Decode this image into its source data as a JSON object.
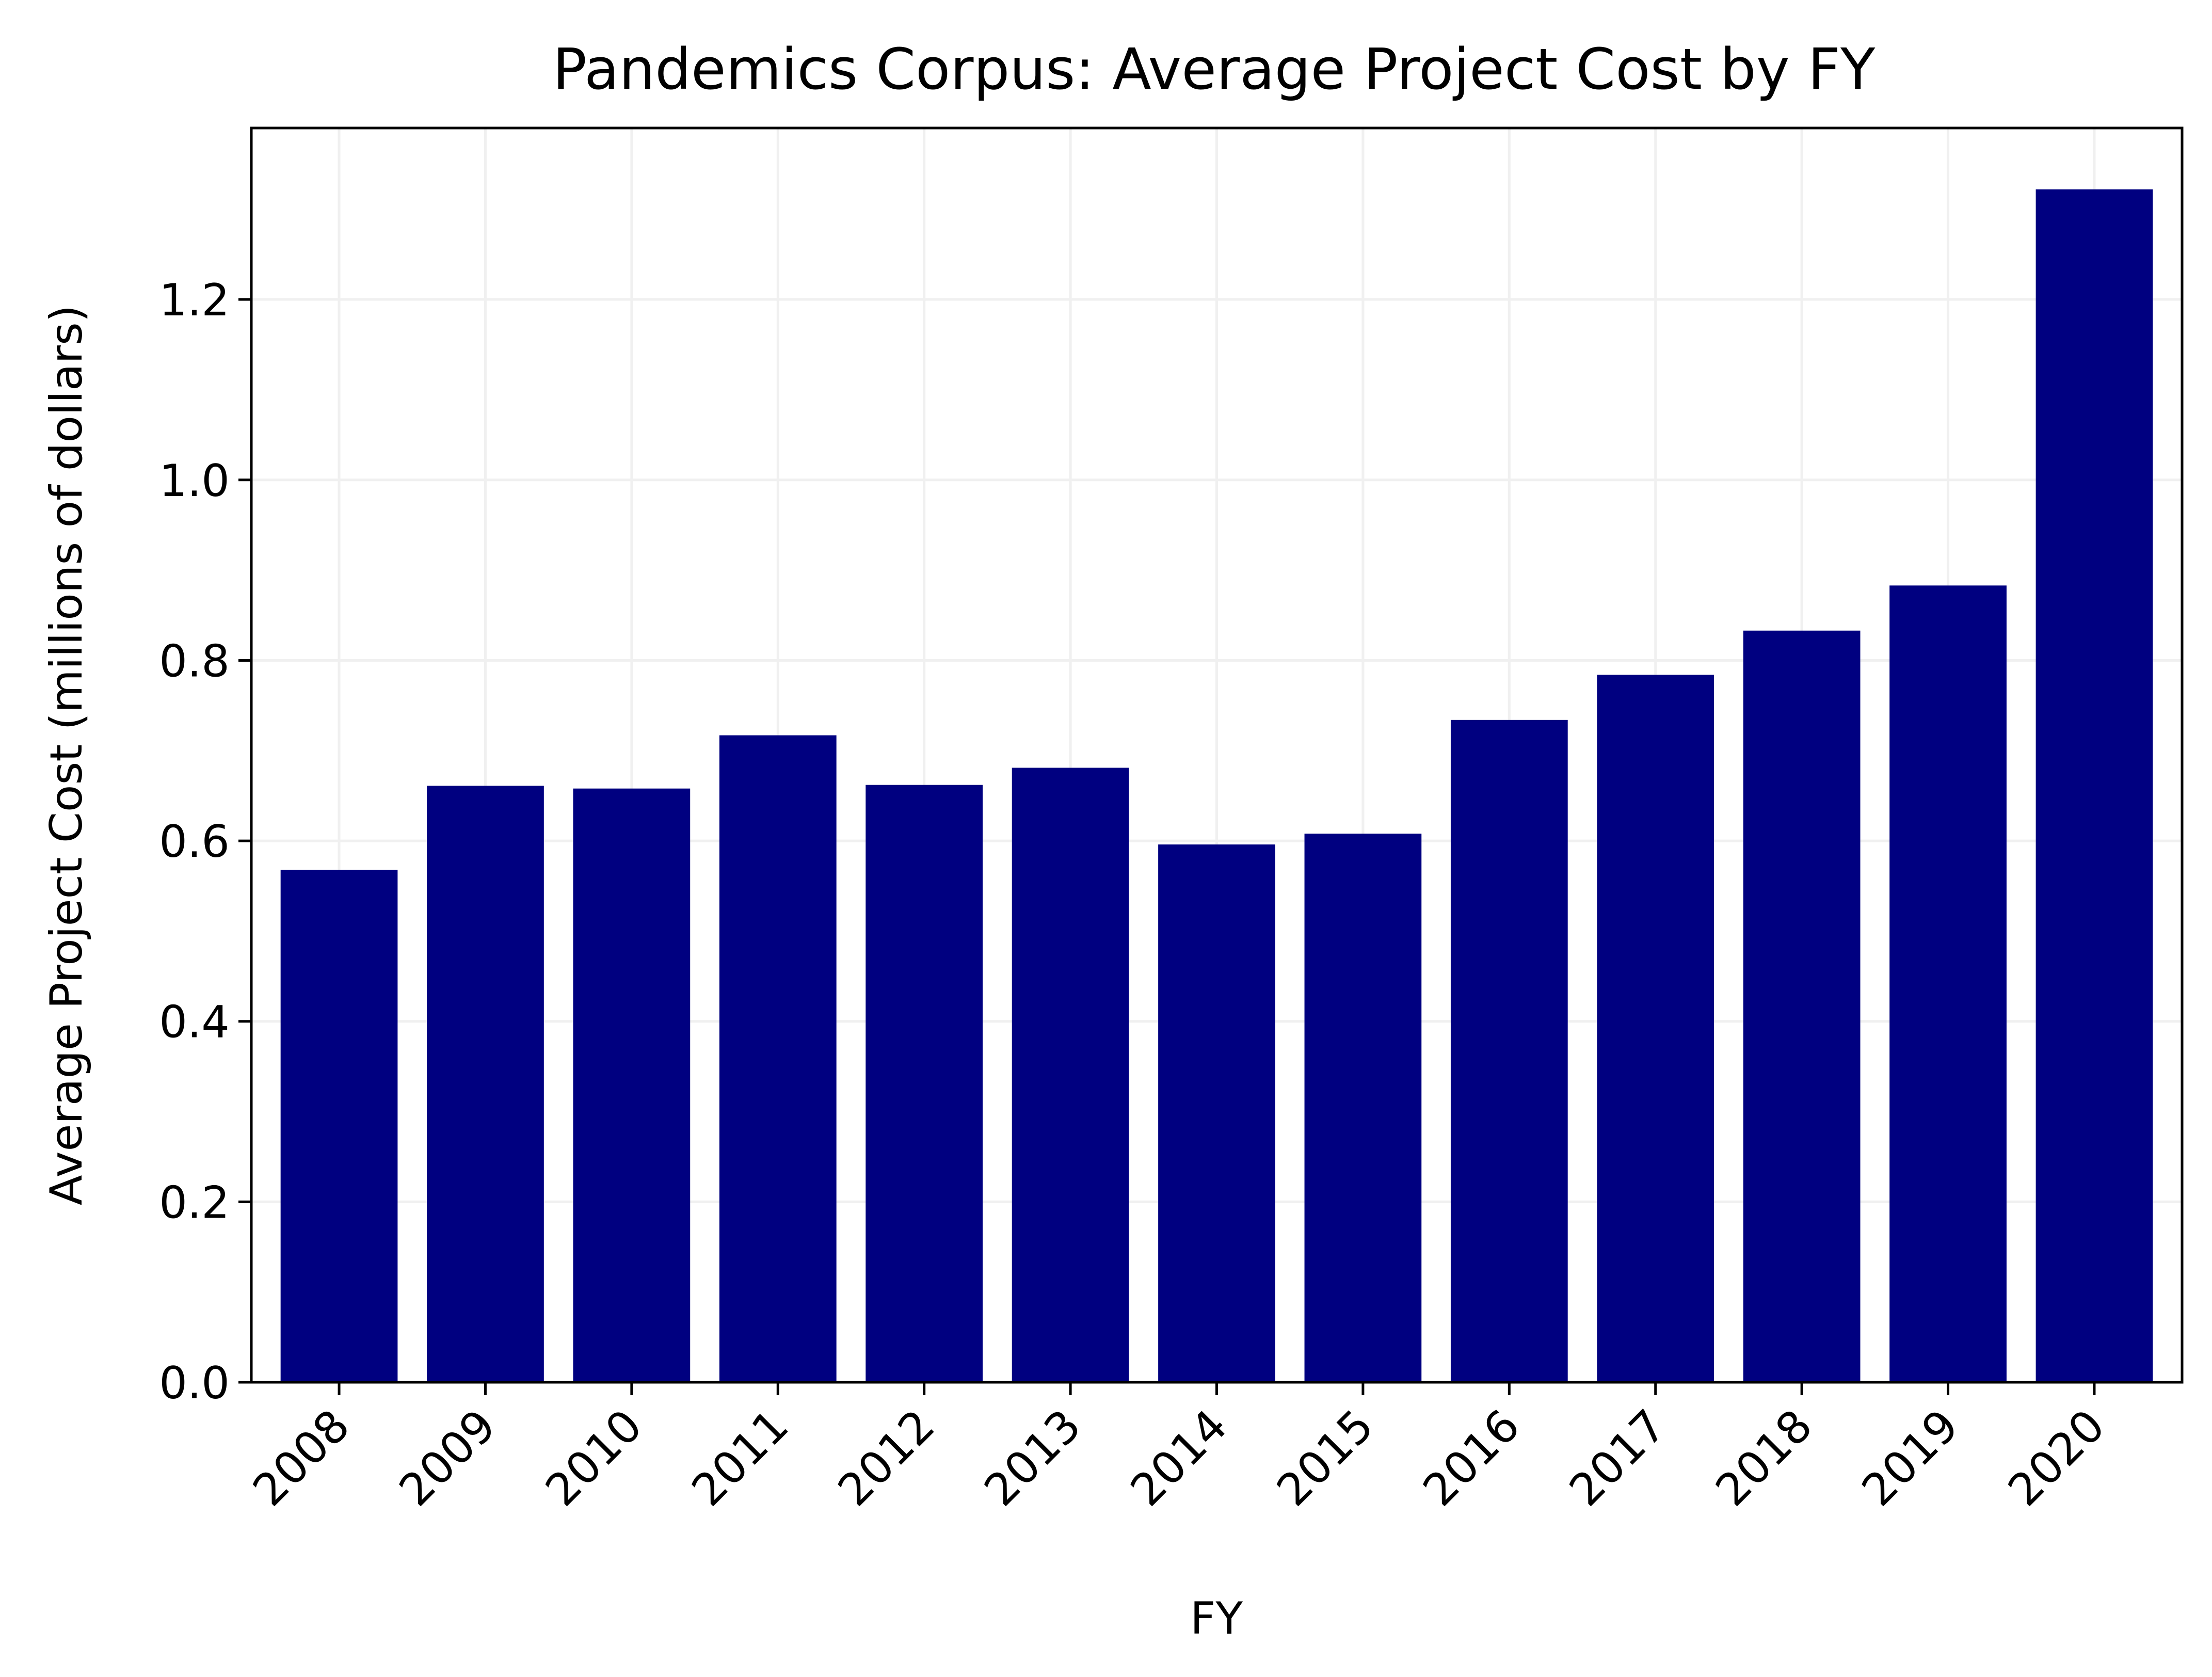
{
  "chart_data": {
    "type": "bar",
    "title": "Pandemics Corpus: Average Project Cost by FY",
    "xlabel": "FY",
    "ylabel": "Average Project Cost (millions of dollars)",
    "categories": [
      "2008",
      "2009",
      "2010",
      "2011",
      "2012",
      "2013",
      "2014",
      "2015",
      "2016",
      "2017",
      "2018",
      "2019",
      "2020"
    ],
    "values": [
      0.568,
      0.661,
      0.658,
      0.717,
      0.662,
      0.681,
      0.596,
      0.608,
      0.734,
      0.784,
      0.833,
      0.883,
      1.322
    ],
    "ylim": [
      0,
      1.39
    ],
    "yticks": [
      "0.0",
      "0.2",
      "0.4",
      "0.6",
      "0.8",
      "1.0",
      "1.2"
    ],
    "grid": true,
    "colors": {
      "bar": "#000080",
      "grid": "#f0f0f0",
      "axis": "#000000"
    }
  }
}
